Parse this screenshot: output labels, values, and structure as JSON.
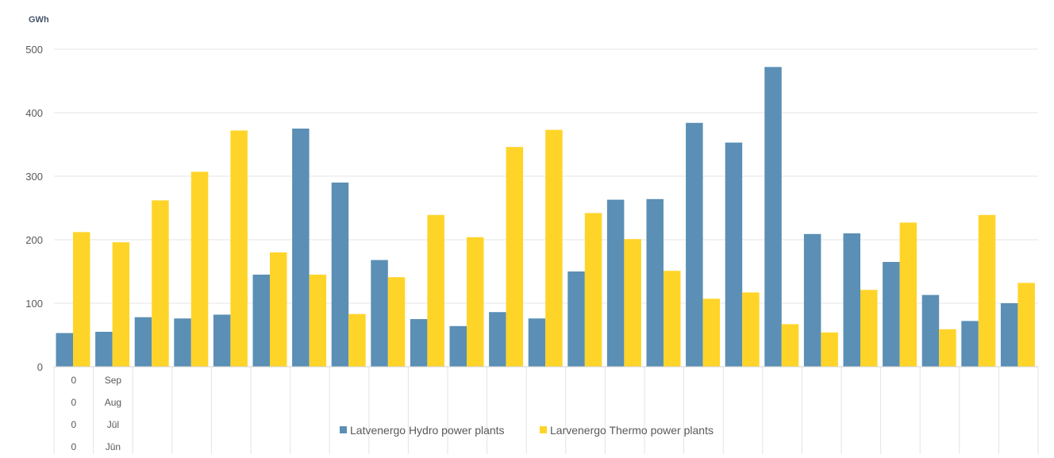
{
  "chart_data": {
    "type": "bar",
    "unit_label": "GWh",
    "ylim": [
      0,
      500
    ],
    "yticks": [
      0,
      100,
      200,
      300,
      400,
      500
    ],
    "grid": true,
    "legend_position": "bottom",
    "category_rows": [
      [
        "0",
        "Sep"
      ],
      [
        "0",
        "Aug"
      ],
      [
        "0",
        "Jūl"
      ],
      [
        "0",
        "Jūn"
      ]
    ],
    "series": [
      {
        "name": "Latvenergo Hydro power plants",
        "color": "#5b8fb5",
        "values": [
          53,
          55,
          78,
          76,
          82,
          145,
          375,
          290,
          168,
          75,
          64,
          86,
          76,
          150,
          263,
          264,
          384,
          353,
          472,
          209,
          210,
          165,
          113,
          72,
          100
        ]
      },
      {
        "name": "Larvenergo Thermo power plants",
        "color": "#ffd428",
        "values": [
          212,
          196,
          262,
          307,
          372,
          180,
          145,
          83,
          141,
          239,
          204,
          346,
          373,
          242,
          201,
          151,
          107,
          117,
          67,
          54,
          121,
          227,
          59,
          239,
          132
        ]
      }
    ]
  }
}
